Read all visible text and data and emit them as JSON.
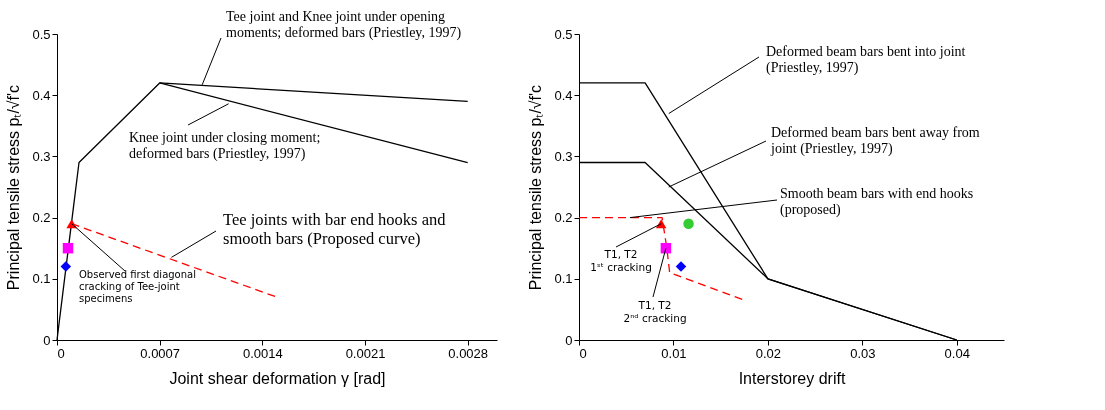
{
  "chart_data": [
    {
      "type": "line",
      "xlabel": "Joint shear deformation γ [rad]",
      "ylabel": "Principal tensile stress pₜ/√f'c",
      "xlim": [
        0,
        0.003
      ],
      "ylim": [
        0,
        0.5
      ],
      "xticks": [
        0,
        0.0007,
        0.0014,
        0.0021,
        0.0028
      ],
      "yticks": [
        0,
        0.1,
        0.2,
        0.3,
        0.4,
        0.5
      ],
      "grid": false,
      "series": [
        {
          "type": "line",
          "color": "#000000",
          "line_style": "solid",
          "marker": "none",
          "x": [
            0,
            0.00015,
            0.0007,
            0.0028
          ],
          "values": [
            0,
            0.29,
            0.42,
            0.39
          ]
        },
        {
          "type": "line",
          "color": "#000000",
          "line_style": "solid",
          "marker": "none",
          "x": [
            0.0007,
            0.0028
          ],
          "values": [
            0.42,
            0.29
          ]
        },
        {
          "type": "line",
          "color": "#ff0000",
          "line_style": "dashed",
          "marker": "none",
          "x": [
            0.0001,
            0.0015
          ],
          "values": [
            0.19,
            0.07
          ]
        },
        {
          "type": "scatter",
          "color": "#ff0000",
          "marker": "triangle",
          "x": [
            0.0001
          ],
          "values": [
            0.19
          ]
        },
        {
          "type": "scatter",
          "color": "#ff00ff",
          "marker": "square",
          "x": [
            7.5e-05
          ],
          "values": [
            0.15
          ]
        },
        {
          "type": "scatter",
          "color": "#0000ff",
          "marker": "diamond",
          "x": [
            6e-05
          ],
          "values": [
            0.12
          ]
        }
      ],
      "annotations": [
        {
          "text": "Tee joint and Knee joint under opening moments; deformed bars (Priestley, 1997)",
          "x": 0.00099,
          "y": 0.417
        },
        {
          "text": "Knee joint under closing moment; deformed bars  (Priestley, 1997)",
          "x": 0.00117,
          "y": 0.386
        },
        {
          "text": "Tee joints with bar end hooks and smooth bars (Proposed curve)",
          "x": 0.00078,
          "y": 0.135
        },
        {
          "text": "Observed first diagonal cracking of Tee-joint specimens",
          "x": 0.0001,
          "y": 0.19
        }
      ]
    },
    {
      "type": "line",
      "xlabel": "Interstorey drift",
      "ylabel": "Principal tensile stress pₜ/√f'c",
      "xlim": [
        0,
        0.045
      ],
      "ylim": [
        0,
        0.5
      ],
      "xticks": [
        0,
        0.01,
        0.02,
        0.03,
        0.04
      ],
      "yticks": [
        0,
        0.1,
        0.2,
        0.3,
        0.4,
        0.5
      ],
      "grid": false,
      "series": [
        {
          "type": "line",
          "color": "#000000",
          "line_style": "solid",
          "marker": "none",
          "x": [
            0,
            0.007,
            0.02,
            0.04
          ],
          "values": [
            0.42,
            0.42,
            0.1,
            0
          ]
        },
        {
          "type": "line",
          "color": "#000000",
          "line_style": "solid",
          "marker": "none",
          "x": [
            0,
            0.007,
            0.02,
            0.04
          ],
          "values": [
            0.29,
            0.29,
            0.1,
            0
          ]
        },
        {
          "type": "line",
          "color": "#ff0000",
          "line_style": "dashed",
          "marker": "none",
          "x": [
            0,
            0.0088,
            0.0093,
            0.0096,
            0.0175
          ],
          "values": [
            0.2,
            0.2,
            0.15,
            0.11,
            0.065
          ]
        },
        {
          "type": "scatter",
          "color": "#ff0000",
          "marker": "triangle",
          "x": [
            0.0087
          ],
          "values": [
            0.19
          ]
        },
        {
          "type": "scatter",
          "color": "#33cc33",
          "marker": "circle",
          "x": [
            0.0116
          ],
          "values": [
            0.19
          ]
        },
        {
          "type": "scatter",
          "color": "#ff00ff",
          "marker": "square",
          "x": [
            0.0092
          ],
          "values": [
            0.15
          ]
        },
        {
          "type": "scatter",
          "color": "#0000ff",
          "marker": "diamond",
          "x": [
            0.0108
          ],
          "values": [
            0.12
          ]
        }
      ],
      "annotations": [
        {
          "text": "Deformed beam bars bent into joint (Priestley, 1997)",
          "x": 0.0095,
          "y": 0.37
        },
        {
          "text": "Deformed beam bars bent away from joint (Priestley, 1997)",
          "x": 0.0095,
          "y": 0.25
        },
        {
          "text": "Smooth beam  bars with end hooks (proposed)",
          "x": 0.0054,
          "y": 0.2
        },
        {
          "text": "T1, T2 1ˢᵗ cracking",
          "x": 0.0087,
          "y": 0.19
        },
        {
          "text": "T1, T2 2ⁿᵈ cracking",
          "x": 0.0092,
          "y": 0.15
        }
      ]
    }
  ]
}
